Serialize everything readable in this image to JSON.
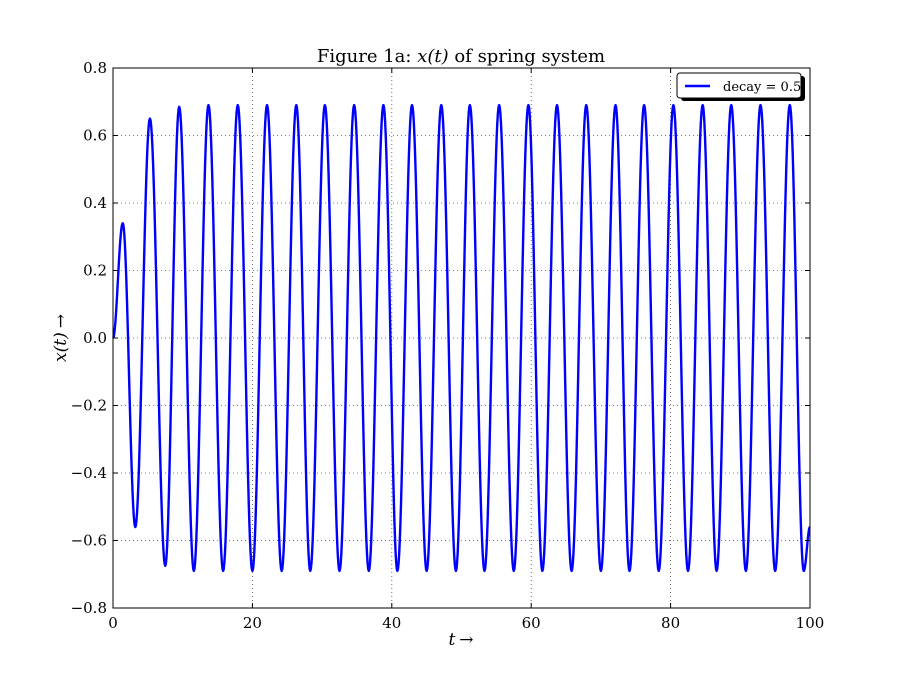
{
  "chart_data": {
    "type": "line",
    "title": "Figure 1a: x(t) of spring system",
    "title_parts": {
      "prefix": "Figure 1a: ",
      "math": "x(t)",
      "suffix": " of spring system"
    },
    "xlabel": "t →",
    "xlabel_parts": {
      "math": "t",
      "arrow": "→"
    },
    "ylabel": "x(t) →",
    "ylabel_parts": {
      "math": "x(t)",
      "arrow": "→"
    },
    "xlim": [
      0,
      100
    ],
    "ylim": [
      -0.8,
      0.8
    ],
    "xticks": [
      0,
      20,
      40,
      60,
      80,
      100
    ],
    "xtick_labels": [
      "0",
      "20",
      "40",
      "60",
      "80",
      "100"
    ],
    "yticks": [
      -0.8,
      -0.6,
      -0.4,
      -0.2,
      0.0,
      0.2,
      0.4,
      0.6,
      0.8
    ],
    "ytick_labels": [
      "−0.8",
      "−0.6",
      "−0.4",
      "−0.2",
      "0.0",
      "0.2",
      "0.4",
      "0.6",
      "0.8"
    ],
    "grid": true,
    "legend_position": "top-right",
    "series": [
      {
        "name": "decay = 0.5",
        "color": "#0000ff",
        "x": [
          0,
          1.4,
          3.2,
          5.3,
          7.5,
          9.5,
          11.6,
          13.7,
          15.8,
          17.9,
          20.0,
          22.1,
          24.2,
          26.3,
          28.3,
          30.4,
          32.5,
          34.6,
          36.7,
          38.8,
          40.8,
          42.9,
          45.0,
          47.1,
          49.2,
          51.2,
          53.3,
          55.4,
          57.5,
          59.6,
          61.6,
          63.7,
          65.8,
          67.9,
          70.0,
          72.1,
          74.1,
          76.2,
          78.3,
          80.4,
          82.5,
          84.6,
          86.6,
          88.7,
          90.8,
          92.9,
          95.0,
          97.1,
          99.1,
          100
        ],
        "y": [
          0.0,
          0.34,
          -0.56,
          0.65,
          -0.675,
          0.685,
          -0.69,
          0.69,
          -0.69,
          0.69,
          -0.69,
          0.69,
          -0.69,
          0.69,
          -0.69,
          0.69,
          -0.69,
          0.69,
          -0.69,
          0.69,
          -0.69,
          0.69,
          -0.69,
          0.69,
          -0.69,
          0.69,
          -0.69,
          0.69,
          -0.69,
          0.69,
          -0.69,
          0.69,
          -0.69,
          0.69,
          -0.69,
          0.69,
          -0.69,
          0.69,
          -0.69,
          0.69,
          -0.69,
          0.69,
          -0.69,
          0.69,
          -0.69,
          0.69,
          -0.69,
          0.69,
          -0.69,
          -0.56
        ]
      }
    ]
  }
}
